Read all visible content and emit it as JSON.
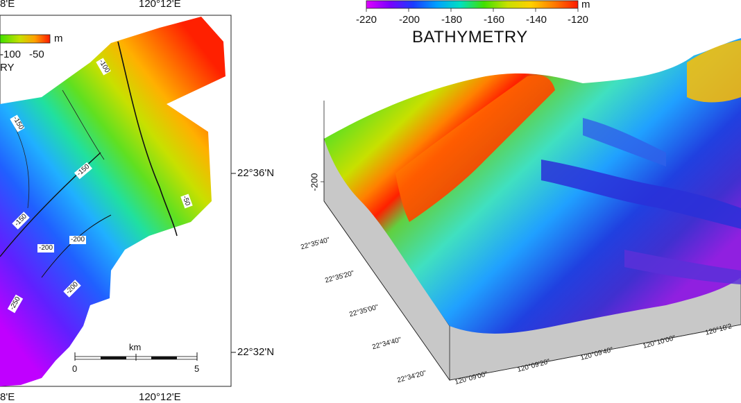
{
  "left_map": {
    "top_lon_labels": [
      "8'E",
      "120°12'E"
    ],
    "bottom_lon_labels": [
      "8'E",
      "120°12'E"
    ],
    "lat_labels": [
      "22°36'N",
      "22°32'N"
    ],
    "colorbar": {
      "unit": "m",
      "ticks": [
        "-100",
        "-50"
      ],
      "title_fragment": "RY"
    },
    "contour_labels": [
      "-100",
      "-150",
      "-150",
      "-150",
      "-200",
      "-200",
      "-200",
      "-250",
      "-50"
    ],
    "scale_bar": {
      "unit": "km",
      "start": "0",
      "end": "5"
    }
  },
  "right_map": {
    "colorbar": {
      "unit": "m",
      "ticks": [
        "-220",
        "-200",
        "-180",
        "-160",
        "-140",
        "-120"
      ],
      "title": "BATHYMETRY",
      "colors": [
        "#e000ff",
        "#7a00ff",
        "#1a3cff",
        "#00a0ff",
        "#00e0c0",
        "#40e000",
        "#c8e000",
        "#ffd000",
        "#ff7a00",
        "#ff1a00"
      ]
    },
    "z_axis_label": "-200",
    "lat_ticks": [
      "22°35'40\"",
      "22°35'20\"",
      "22°35'00\"",
      "22°34'40\"",
      "22°34'20\""
    ],
    "lon_ticks": [
      "120°09'00\"",
      "120°09'20\"",
      "120°09'40\"",
      "120°10'00\"",
      "120°10'2"
    ]
  }
}
